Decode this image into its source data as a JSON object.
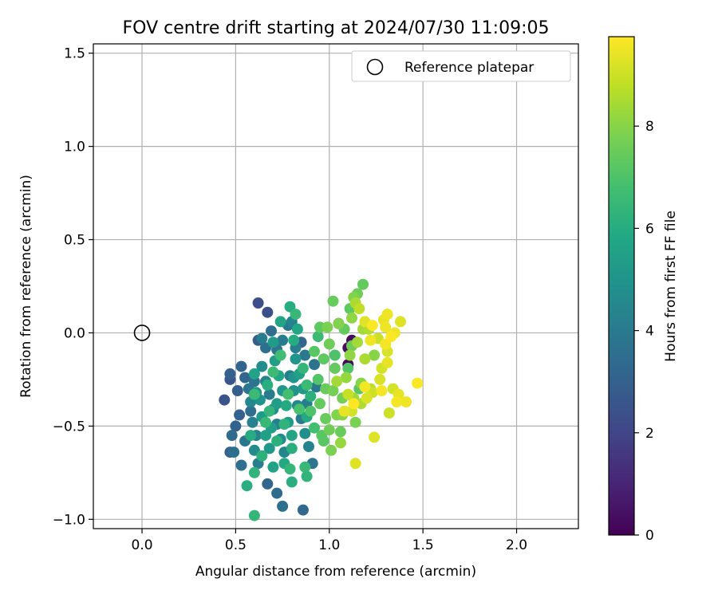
{
  "chart_data": {
    "type": "scatter",
    "title": "FOV centre drift starting at 2024/07/30 11:09:05",
    "xlabel": "Angular distance from reference (arcmin)",
    "ylabel": "Rotation from reference (arcmin)",
    "xlim": [
      -0.26,
      2.33
    ],
    "ylim": [
      -1.05,
      1.55
    ],
    "xticks": [
      0.0,
      0.5,
      1.0,
      1.5,
      2.0
    ],
    "yticks": [
      -1.0,
      -0.5,
      0.0,
      0.5,
      1.0,
      1.5
    ],
    "xtick_labels": [
      "0.0",
      "0.5",
      "1.0",
      "1.5",
      "2.0"
    ],
    "ytick_labels": [
      "−1.0",
      "−0.5",
      "0.0",
      "0.5",
      "1.0",
      "1.5"
    ],
    "grid": true,
    "legend_position": "top-right",
    "reference": {
      "label": "Reference platepar",
      "x": 0.0,
      "y": 0.0
    },
    "colorbar": {
      "label": "Hours from first FF file",
      "min": 0,
      "max": 9.75,
      "ticks": [
        0,
        2,
        4,
        6,
        8
      ],
      "tick_labels": [
        "0",
        "2",
        "4",
        "6",
        "8"
      ],
      "colormap": "viridis"
    },
    "series": [
      {
        "color_by": "hours",
        "points": [
          [
            0.62,
            0.16,
            2.3
          ],
          [
            0.67,
            0.11,
            2.4
          ],
          [
            0.44,
            -0.36,
            2.5
          ],
          [
            0.47,
            -0.22,
            3.0
          ],
          [
            0.47,
            -0.25,
            2.6
          ],
          [
            0.51,
            -0.31,
            2.9
          ],
          [
            0.53,
            -0.18,
            3.1
          ],
          [
            0.55,
            -0.24,
            3.2
          ],
          [
            0.5,
            -0.5,
            3.1
          ],
          [
            0.52,
            -0.44,
            3.0
          ],
          [
            0.48,
            -0.55,
            3.4
          ],
          [
            0.47,
            -0.64,
            3.0
          ],
          [
            0.49,
            -0.64,
            3.6
          ],
          [
            0.53,
            -0.71,
            3.5
          ],
          [
            0.55,
            -0.58,
            3.8
          ],
          [
            0.58,
            -0.42,
            3.5
          ],
          [
            0.6,
            -0.26,
            3.7
          ],
          [
            0.62,
            -0.04,
            2.8
          ],
          [
            0.64,
            -0.03,
            4.0
          ],
          [
            0.66,
            -0.08,
            3.6
          ],
          [
            0.69,
            0.01,
            3.5
          ],
          [
            0.72,
            -0.09,
            3.8
          ],
          [
            0.75,
            -0.04,
            4.0
          ],
          [
            0.78,
            0.04,
            3.9
          ],
          [
            0.8,
            0.06,
            4.3
          ],
          [
            0.82,
            -0.08,
            4.1
          ],
          [
            0.85,
            -0.05,
            3.2
          ],
          [
            0.87,
            -0.12,
            3.9
          ],
          [
            0.57,
            -0.3,
            3.8
          ],
          [
            0.58,
            -0.37,
            4.5
          ],
          [
            0.59,
            -0.48,
            4.2
          ],
          [
            0.61,
            -0.55,
            4.3
          ],
          [
            0.6,
            -0.63,
            4.6
          ],
          [
            0.62,
            -0.7,
            4.1
          ],
          [
            0.64,
            -0.18,
            4.7
          ],
          [
            0.66,
            -0.26,
            4.4
          ],
          [
            0.68,
            -0.33,
            4.0
          ],
          [
            0.7,
            -0.41,
            4.8
          ],
          [
            0.72,
            -0.49,
            4.2
          ],
          [
            0.74,
            -0.57,
            4.6
          ],
          [
            0.76,
            -0.64,
            4.4
          ],
          [
            0.79,
            -0.23,
            4.1
          ],
          [
            0.81,
            -0.31,
            4.9
          ],
          [
            0.83,
            -0.39,
            4.5
          ],
          [
            0.85,
            -0.46,
            4.0
          ],
          [
            0.87,
            -0.54,
            4.8
          ],
          [
            0.89,
            -0.61,
            4.3
          ],
          [
            0.91,
            -0.7,
            3.8
          ],
          [
            0.67,
            -0.81,
            3.2
          ],
          [
            0.72,
            -0.86,
            3.4
          ],
          [
            0.75,
            -0.93,
            3.6
          ],
          [
            0.86,
            -0.95,
            3.3
          ],
          [
            0.88,
            -0.38,
            4.1
          ],
          [
            0.92,
            -0.17,
            3.7
          ],
          [
            0.93,
            -0.29,
            3.9
          ],
          [
            0.63,
            -0.36,
            5.0
          ],
          [
            0.64,
            -0.45,
            5.3
          ],
          [
            0.66,
            -0.55,
            5.5
          ],
          [
            0.68,
            -0.62,
            5.2
          ],
          [
            0.7,
            -0.72,
            5.6
          ],
          [
            0.71,
            -0.15,
            5.4
          ],
          [
            0.73,
            -0.23,
            5.8
          ],
          [
            0.75,
            -0.31,
            5.1
          ],
          [
            0.77,
            -0.39,
            5.9
          ],
          [
            0.78,
            -0.48,
            5.3
          ],
          [
            0.8,
            -0.55,
            5.7
          ],
          [
            0.82,
            -0.14,
            5.0
          ],
          [
            0.84,
            -0.22,
            5.5
          ],
          [
            0.86,
            -0.3,
            5.2
          ],
          [
            0.88,
            -0.45,
            5.9
          ],
          [
            0.6,
            -0.22,
            5.6
          ],
          [
            0.61,
            -0.32,
            5.1
          ],
          [
            0.7,
            -0.05,
            5.3
          ],
          [
            0.74,
            0.06,
            5.7
          ],
          [
            0.79,
            0.14,
            6.0
          ],
          [
            0.83,
            0.02,
            5.8
          ],
          [
            0.72,
            -0.38,
            5.4
          ],
          [
            0.81,
            -0.24,
            5.0
          ],
          [
            0.69,
            -0.51,
            5.5
          ],
          [
            0.76,
            -0.7,
            5.9
          ],
          [
            0.56,
            -0.82,
            6.1
          ],
          [
            0.6,
            -0.75,
            6.3
          ],
          [
            0.6,
            -0.98,
            6.4
          ],
          [
            0.64,
            -0.66,
            6.2
          ],
          [
            0.66,
            -0.48,
            6.5
          ],
          [
            0.67,
            -0.28,
            6.1
          ],
          [
            0.68,
            -0.42,
            6.4
          ],
          [
            0.7,
            -0.21,
            6.6
          ],
          [
            0.72,
            -0.58,
            6.2
          ],
          [
            0.74,
            -0.12,
            6.7
          ],
          [
            0.76,
            -0.49,
            6.3
          ],
          [
            0.78,
            -0.33,
            6.8
          ],
          [
            0.8,
            -0.62,
            6.1
          ],
          [
            0.82,
            0.1,
            6.5
          ],
          [
            0.84,
            -0.41,
            6.9
          ],
          [
            0.86,
            -0.19,
            6.4
          ],
          [
            0.88,
            -0.28,
            6.6
          ],
          [
            0.9,
            -0.34,
            6.2
          ],
          [
            0.92,
            -0.51,
            6.8
          ],
          [
            0.58,
            -0.55,
            6.0
          ],
          [
            0.6,
            -0.33,
            6.6
          ],
          [
            0.79,
            -0.73,
            6.4
          ],
          [
            0.81,
            -0.04,
            6.0
          ],
          [
            0.87,
            -0.72,
            6.5
          ],
          [
            0.88,
            -0.77,
            6.3
          ],
          [
            0.8,
            -0.8,
            6.1
          ],
          [
            0.94,
            -0.02,
            6.6
          ],
          [
            0.9,
            -0.42,
            7.0
          ],
          [
            0.92,
            -0.1,
            7.2
          ],
          [
            0.94,
            -0.25,
            7.1
          ],
          [
            0.95,
            -0.38,
            7.4
          ],
          [
            0.97,
            -0.14,
            7.3
          ],
          [
            0.98,
            -0.46,
            7.5
          ],
          [
            1.0,
            -0.06,
            7.6
          ],
          [
            0.96,
            -0.55,
            7.2
          ],
          [
            1.02,
            -0.31,
            7.7
          ],
          [
            1.03,
            -0.19,
            7.4
          ],
          [
            0.95,
            0.03,
            7.3
          ],
          [
            1.0,
            -0.52,
            7.6
          ],
          [
            1.01,
            -0.63,
            7.8
          ],
          [
            0.97,
            -0.58,
            7.2
          ],
          [
            1.06,
            -0.53,
            7.5
          ],
          [
            1.04,
            -0.44,
            7.9
          ],
          [
            1.07,
            -0.35,
            7.7
          ],
          [
            1.08,
            0.02,
            7.4
          ],
          [
            0.99,
            0.03,
            7.8
          ],
          [
            1.02,
            0.17,
            7.5
          ],
          [
            1.11,
            0.13,
            7.3
          ],
          [
            1.13,
            0.19,
            7.9
          ],
          [
            1.15,
            0.21,
            7.6
          ],
          [
            1.18,
            0.26,
            7.4
          ],
          [
            1.14,
            -0.48,
            7.8
          ],
          [
            1.1,
            -0.19,
            7.1
          ],
          [
            1.12,
            -0.07,
            7.6
          ],
          [
            1.16,
            -0.3,
            7.2
          ],
          [
            1.05,
            0.05,
            7.9
          ],
          [
            1.03,
            -0.12,
            7.0
          ],
          [
            0.98,
            -0.3,
            7.5
          ],
          [
            1.07,
            -0.44,
            8.0
          ],
          [
            1.09,
            -0.24,
            8.2
          ],
          [
            1.11,
            -0.12,
            8.1
          ],
          [
            1.13,
            -0.35,
            8.3
          ],
          [
            1.15,
            -0.05,
            8.4
          ],
          [
            1.17,
            -0.27,
            8.0
          ],
          [
            1.19,
            -0.14,
            8.5
          ],
          [
            1.21,
            0.02,
            8.6
          ],
          [
            1.12,
            0.08,
            8.1
          ],
          [
            1.08,
            -0.42,
            8.3
          ],
          [
            1.18,
            0.02,
            8.4
          ],
          [
            1.22,
            -0.3,
            8.7
          ],
          [
            1.06,
            -0.59,
            8.2
          ],
          [
            1.14,
            0.16,
            8.5
          ],
          [
            1.16,
            0.13,
            8.8
          ],
          [
            1.24,
            -0.12,
            8.0
          ],
          [
            1.17,
            -0.38,
            8.6
          ],
          [
            1.04,
            -0.26,
            8.4
          ],
          [
            1.1,
            -0.33,
            8.9
          ],
          [
            1.08,
            -0.42,
            9.4
          ],
          [
            1.12,
            -0.42,
            9.1
          ],
          [
            1.19,
            -0.29,
            9.6
          ],
          [
            1.2,
            -0.35,
            9.2
          ],
          [
            1.22,
            -0.04,
            9.5
          ],
          [
            1.23,
            0.04,
            9.7
          ],
          [
            1.24,
            -0.56,
            9.3
          ],
          [
            1.26,
            -0.03,
            9.0
          ],
          [
            1.28,
            -0.31,
            9.6
          ],
          [
            1.29,
            0.07,
            9.4
          ],
          [
            1.31,
            -0.1,
            9.2
          ],
          [
            1.31,
            0.1,
            9.5
          ],
          [
            1.33,
            -0.02,
            9.7
          ],
          [
            1.34,
            -0.3,
            9.1
          ],
          [
            1.35,
            0.0,
            9.5
          ],
          [
            1.36,
            -0.37,
            9.6
          ],
          [
            1.38,
            0.06,
            9.3
          ],
          [
            1.41,
            -0.37,
            9.5
          ],
          [
            1.47,
            -0.27,
            9.7
          ],
          [
            1.37,
            -0.33,
            9.4
          ],
          [
            1.32,
            -0.43,
            9.0
          ],
          [
            1.14,
            -0.7,
            9.3
          ],
          [
            1.28,
            -0.19,
            9.1
          ],
          [
            1.13,
            -0.38,
            9.8
          ],
          [
            1.27,
            -0.25,
            9.2
          ],
          [
            1.23,
            -0.32,
            9.0
          ],
          [
            1.3,
            0.03,
            9.5
          ],
          [
            1.19,
            0.06,
            9.3
          ],
          [
            1.31,
            -0.16,
            9.4
          ],
          [
            1.3,
            -0.06,
            9.6
          ],
          [
            1.1,
            -0.17,
            0.2
          ],
          [
            1.05,
            0.05,
            0.1
          ],
          [
            1.1,
            -0.08,
            0.4
          ],
          [
            1.12,
            -0.04,
            0.3
          ]
        ]
      }
    ]
  }
}
